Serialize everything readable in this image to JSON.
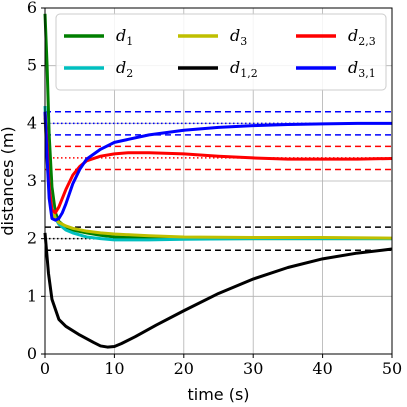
{
  "chart_data": {
    "type": "line",
    "xlabel": "time (s)",
    "ylabel": "distances (m)",
    "xlim": [
      0,
      50
    ],
    "ylim": [
      0,
      6
    ],
    "xticks": [
      0,
      10,
      20,
      30,
      40,
      50
    ],
    "yticks": [
      0,
      1,
      2,
      3,
      4,
      5,
      6
    ],
    "grid": true,
    "legend": {
      "placement": "top-right",
      "columns": 3,
      "entries": [
        {
          "base": "d",
          "sub": "1",
          "color": "#007f00"
        },
        {
          "base": "d",
          "sub": "2",
          "color": "#00bfbf"
        },
        {
          "base": "d",
          "sub": "3",
          "color": "#bfbf00"
        },
        {
          "base": "d",
          "sub": "1,2",
          "color": "#000000"
        },
        {
          "base": "d",
          "sub": "2,3",
          "color": "#ff0000"
        },
        {
          "base": "d",
          "sub": "3,1",
          "color": "#0000ff"
        }
      ]
    },
    "series": [
      {
        "color": "#007f00",
        "x": [
          0,
          0.3,
          0.6,
          1,
          1.5,
          2,
          3,
          4,
          6,
          8,
          10,
          15,
          20,
          30,
          40,
          50
        ],
        "y": [
          5.9,
          5.0,
          3.8,
          2.9,
          2.45,
          2.3,
          2.2,
          2.15,
          2.1,
          2.06,
          2.03,
          2.01,
          2.0,
          2.0,
          2.0,
          2.0
        ]
      },
      {
        "color": "#00bfbf",
        "x": [
          0,
          0.3,
          0.6,
          1,
          1.5,
          2,
          3,
          4,
          6,
          8,
          10,
          15,
          20,
          30,
          40,
          50
        ],
        "y": [
          4.3,
          3.5,
          2.9,
          2.55,
          2.35,
          2.25,
          2.15,
          2.1,
          2.03,
          2.0,
          1.98,
          1.98,
          1.99,
          2.0,
          2.0,
          2.0
        ]
      },
      {
        "color": "#bfbf00",
        "x": [
          0,
          0.3,
          0.6,
          1,
          1.5,
          2,
          3,
          4,
          6,
          8,
          10,
          15,
          20,
          30,
          40,
          50
        ],
        "y": [
          4.1,
          3.4,
          2.8,
          2.5,
          2.35,
          2.28,
          2.22,
          2.18,
          2.13,
          2.1,
          2.08,
          2.05,
          2.03,
          2.02,
          2.02,
          2.01
        ]
      },
      {
        "color": "#000000",
        "x": [
          0,
          0.5,
          1,
          2,
          3,
          5,
          7,
          8,
          9,
          10,
          11,
          13,
          16,
          20,
          25,
          30,
          35,
          40,
          45,
          50
        ],
        "y": [
          2.1,
          1.4,
          0.95,
          0.6,
          0.48,
          0.33,
          0.2,
          0.14,
          0.12,
          0.13,
          0.18,
          0.3,
          0.5,
          0.75,
          1.05,
          1.3,
          1.5,
          1.65,
          1.75,
          1.82
        ]
      },
      {
        "color": "#ff0000",
        "x": [
          0,
          0.3,
          0.6,
          1,
          1.5,
          2,
          3,
          4,
          5,
          6,
          8,
          10,
          12,
          15,
          20,
          25,
          30,
          35,
          40,
          45,
          50
        ],
        "y": [
          4.2,
          3.6,
          2.9,
          2.5,
          2.45,
          2.55,
          2.85,
          3.1,
          3.25,
          3.35,
          3.43,
          3.47,
          3.49,
          3.49,
          3.47,
          3.43,
          3.4,
          3.38,
          3.38,
          3.38,
          3.39
        ]
      },
      {
        "color": "#0000ff",
        "x": [
          0,
          0.3,
          0.6,
          1,
          1.5,
          2,
          2.5,
          3,
          4,
          5,
          6,
          8,
          10,
          15,
          20,
          25,
          30,
          35,
          40,
          45,
          50
        ],
        "y": [
          4.2,
          3.4,
          2.7,
          2.35,
          2.32,
          2.35,
          2.45,
          2.6,
          2.95,
          3.2,
          3.38,
          3.55,
          3.67,
          3.8,
          3.88,
          3.93,
          3.96,
          3.98,
          3.99,
          4.0,
          4.0
        ]
      }
    ],
    "reference_lines": [
      {
        "y": 4.2,
        "color": "#0000ff",
        "style": "dashed"
      },
      {
        "y": 4.0,
        "color": "#0000ff",
        "style": "dotted"
      },
      {
        "y": 3.8,
        "color": "#0000ff",
        "style": "dashed"
      },
      {
        "y": 3.6,
        "color": "#ff0000",
        "style": "dashed"
      },
      {
        "y": 3.4,
        "color": "#ff0000",
        "style": "dotted"
      },
      {
        "y": 3.2,
        "color": "#ff0000",
        "style": "dashed"
      },
      {
        "y": 2.2,
        "color": "#000000",
        "style": "dashed"
      },
      {
        "y": 2.0,
        "color": "#000000",
        "style": "dotted"
      },
      {
        "y": 1.8,
        "color": "#000000",
        "style": "dashed"
      }
    ]
  }
}
